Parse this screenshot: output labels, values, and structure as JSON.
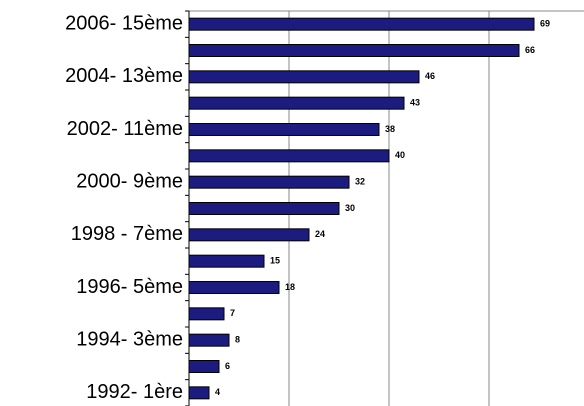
{
  "chart_data": {
    "type": "barh",
    "categories": [
      "2006- 15ème",
      null,
      "2004- 13ème",
      null,
      "2002- 11ème",
      null,
      "2000- 9ème",
      null,
      "1998 - 7ème",
      null,
      "1996- 5ème",
      null,
      "1994- 3ème",
      null,
      "1992- 1ère"
    ],
    "values": [
      69,
      66,
      46,
      43,
      38,
      40,
      32,
      30,
      24,
      15,
      18,
      7,
      8,
      6,
      4
    ],
    "color": "#1c1c80",
    "xlim": [
      0,
      79
    ],
    "xticks": [
      0,
      20,
      40,
      60
    ],
    "grid": true
  }
}
